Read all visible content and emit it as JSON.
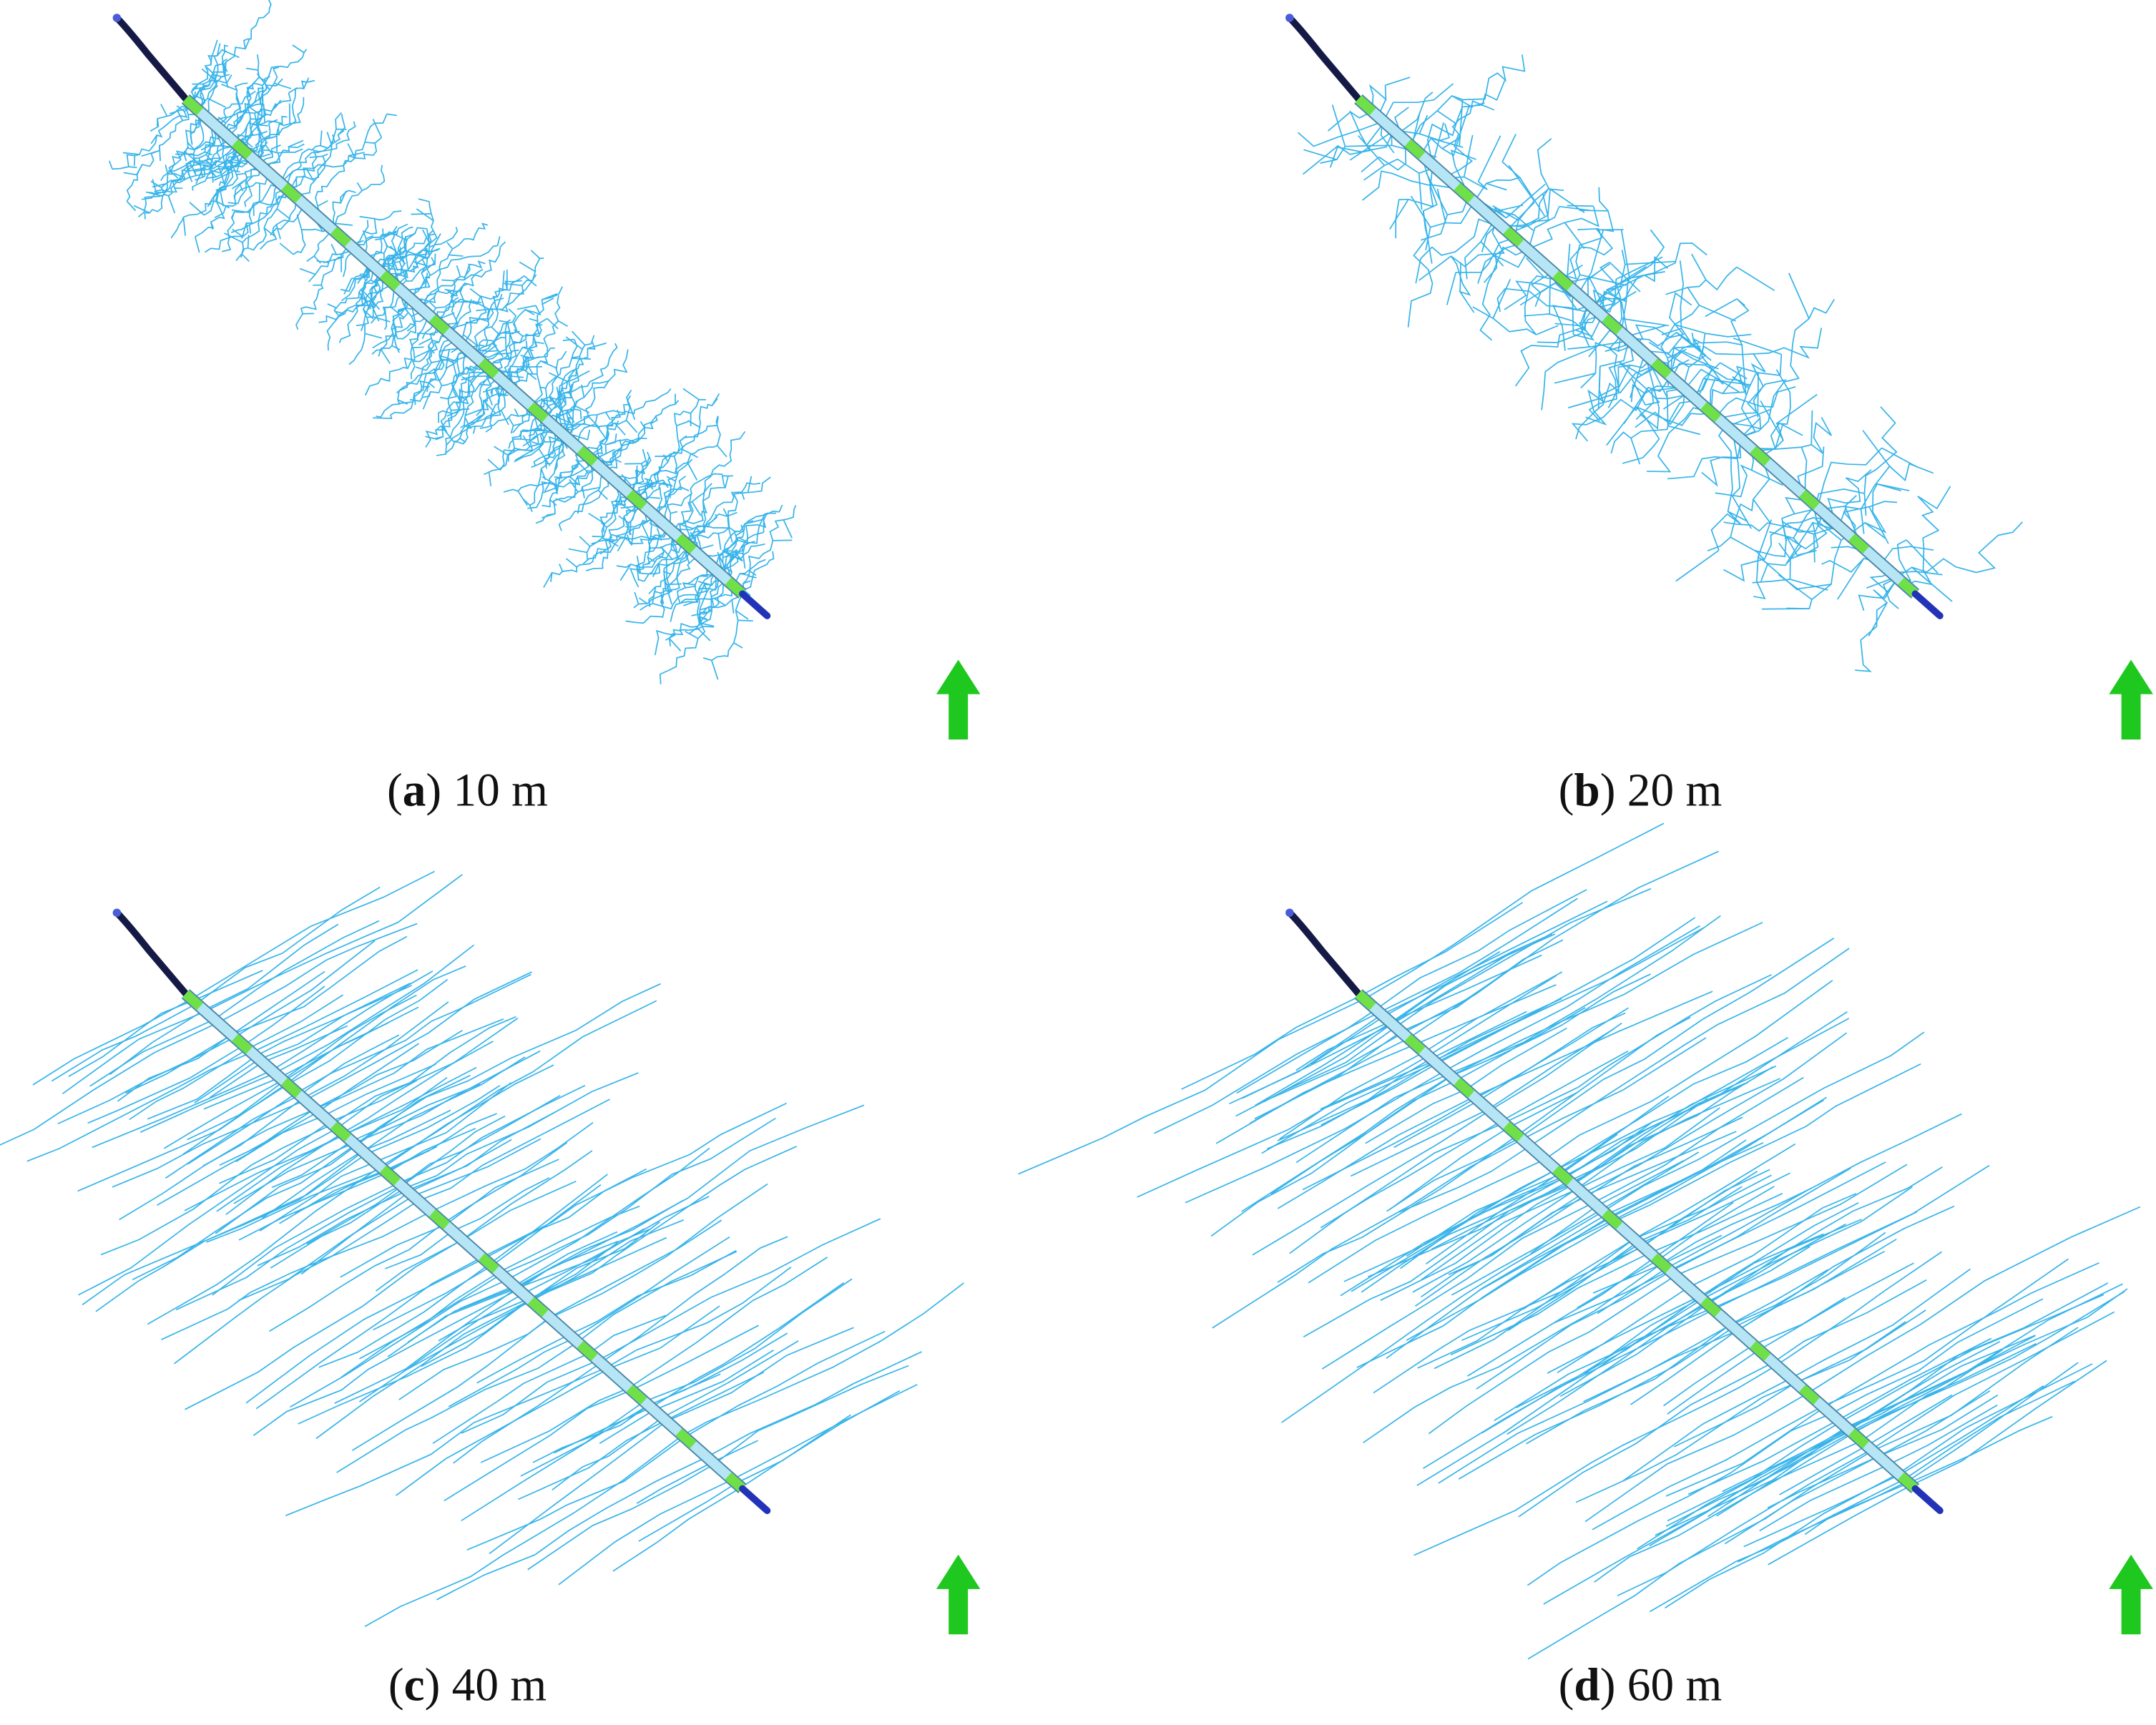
{
  "panels": [
    {
      "caption": [
        "(",
        "a",
        ") 10 m"
      ]
    },
    {
      "caption": [
        "(",
        "b",
        ") 20 m"
      ]
    },
    {
      "caption": [
        "(",
        "c",
        ") 40 m"
      ]
    },
    {
      "caption": [
        "(",
        "d",
        ") 60 m"
      ]
    }
  ]
}
